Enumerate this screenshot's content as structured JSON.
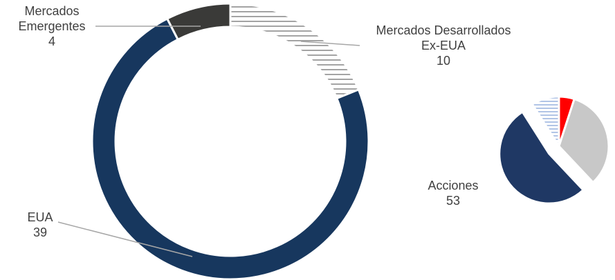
{
  "chart_data": [
    {
      "type": "donut",
      "categories": [
        "Mercados Desarrollados\nEx-EUA",
        "EUA",
        "Mercados\nEmergentes"
      ],
      "values": [
        10,
        39,
        4
      ],
      "colors": [
        "#8c8c8c",
        "#17375e",
        "#3a3a38"
      ],
      "patterns": [
        "stripes",
        null,
        null
      ]
    },
    {
      "type": "pie",
      "categories": [
        null,
        null,
        "Acciones",
        null
      ],
      "values": [
        5,
        33,
        53,
        9
      ],
      "colors": [
        "#ff0000",
        "#c8c8c8",
        "#1f3864",
        "#8faadc"
      ],
      "patterns": [
        null,
        null,
        null,
        "stripes"
      ],
      "explode": [
        false,
        false,
        true,
        false
      ]
    }
  ]
}
